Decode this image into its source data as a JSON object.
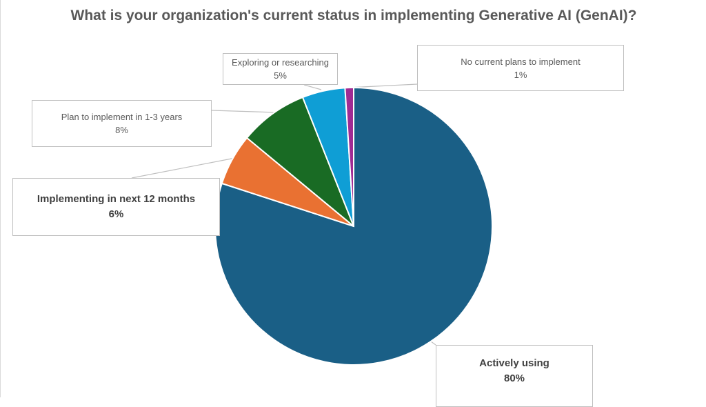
{
  "chart_data": {
    "type": "pie",
    "title": "What is your organization's current status in implementing  Generative AI (GenAI)?",
    "slices": [
      {
        "label": "Actively using",
        "value": 80,
        "display": "80%",
        "color": "#1a5f86"
      },
      {
        "label": "Implementing in next 12 months",
        "value": 6,
        "display": "6%",
        "color": "#e97132"
      },
      {
        "label": "Plan to implement in 1-3 years",
        "value": 8,
        "display": "8%",
        "color": "#196b24"
      },
      {
        "label": "Exploring or researching",
        "value": 5,
        "display": "5%",
        "color": "#0f9ed5"
      },
      {
        "label": "No current plans to implement",
        "value": 1,
        "display": "1%",
        "color": "#a02b93"
      }
    ],
    "start_angle": "top",
    "direction": "clockwise",
    "legend": "none"
  }
}
